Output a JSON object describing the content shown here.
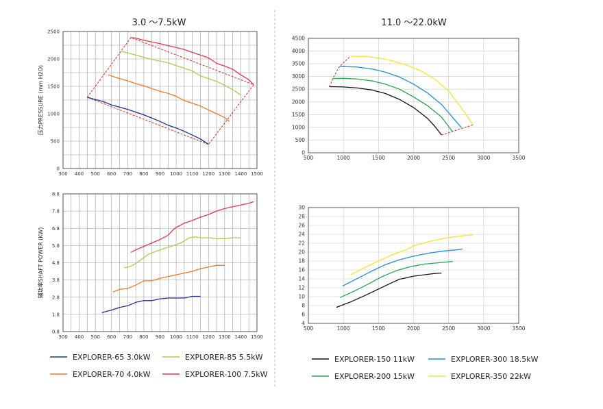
{
  "titles": {
    "left": "3.0 ～7.5kW",
    "right": "11.0 ～22.0kW"
  },
  "colors": {
    "explorer65": "#1f2e8c",
    "explorer70": "#f07a1e",
    "explorer85": "#a6d048",
    "explorer100": "#e8334f",
    "explorer150": "#111111",
    "explorer200": "#22a54d",
    "explorer300": "#1c8fd6",
    "explorer350": "#f4e62a",
    "envelope": "#e0261c",
    "grid": "#9a9a9a",
    "rightGrid": "#c8c8c8"
  },
  "legend_left": [
    {
      "label": "EXPLORER-65  3.0kW",
      "color": "#1f2e8c"
    },
    {
      "label": "EXPLORER-85  5.5kW",
      "color": "#a6d048"
    },
    {
      "label": "EXPLORER-70  4.0kW",
      "color": "#f07a1e"
    },
    {
      "label": "EXPLORER-100  7.5kW",
      "color": "#e8334f"
    }
  ],
  "legend_right": [
    {
      "label": "EXPLORER-150  11kW",
      "color": "#111111"
    },
    {
      "label": "EXPLORER-300  18.5kW",
      "color": "#1c8fd6"
    },
    {
      "label": "EXPLORER-200  15kW",
      "color": "#22a54d"
    },
    {
      "label": "EXPLORER-350  22kW",
      "color": "#f4e62a"
    }
  ],
  "chart_data": [
    {
      "type": "line",
      "title": "3.0 ～7.5kW",
      "ylabel": "压力PRESSURE (mm H2O)",
      "xlim": [
        300,
        1500
      ],
      "ylim": [
        0,
        2500
      ],
      "xticks": [
        300,
        400,
        500,
        600,
        700,
        800,
        900,
        1000,
        1100,
        1200,
        1300,
        1400,
        1500
      ],
      "yticks": [
        0,
        500,
        1000,
        1500,
        2000,
        2500
      ],
      "grid": true,
      "series": [
        {
          "name": "EXPLORER-65  3.0kW",
          "color": "#1f2e8c",
          "points": [
            [
              450,
              1300
            ],
            [
              500,
              1260
            ],
            [
              550,
              1220
            ],
            [
              600,
              1160
            ],
            [
              650,
              1120
            ],
            [
              700,
              1080
            ],
            [
              750,
              1030
            ],
            [
              800,
              980
            ],
            [
              850,
              920
            ],
            [
              900,
              860
            ],
            [
              950,
              790
            ],
            [
              1000,
              740
            ],
            [
              1050,
              680
            ],
            [
              1100,
              610
            ],
            [
              1150,
              540
            ],
            [
              1200,
              440
            ]
          ]
        },
        {
          "name": "EXPLORER-70  4.0kW",
          "color": "#f07a1e",
          "points": [
            [
              580,
              1710
            ],
            [
              650,
              1640
            ],
            [
              700,
              1600
            ],
            [
              750,
              1550
            ],
            [
              800,
              1510
            ],
            [
              850,
              1460
            ],
            [
              900,
              1410
            ],
            [
              950,
              1370
            ],
            [
              1000,
              1320
            ],
            [
              1050,
              1240
            ],
            [
              1100,
              1190
            ],
            [
              1150,
              1140
            ],
            [
              1200,
              1070
            ],
            [
              1250,
              1000
            ],
            [
              1300,
              930
            ],
            [
              1330,
              860
            ]
          ]
        },
        {
          "name": "EXPLORER-85  5.5kW",
          "color": "#a6d048",
          "points": [
            [
              660,
              2140
            ],
            [
              700,
              2110
            ],
            [
              750,
              2070
            ],
            [
              800,
              2030
            ],
            [
              850,
              1990
            ],
            [
              900,
              1960
            ],
            [
              950,
              1930
            ],
            [
              1000,
              1880
            ],
            [
              1050,
              1830
            ],
            [
              1100,
              1780
            ],
            [
              1150,
              1690
            ],
            [
              1200,
              1640
            ],
            [
              1250,
              1590
            ],
            [
              1300,
              1520
            ],
            [
              1350,
              1440
            ],
            [
              1400,
              1340
            ]
          ]
        },
        {
          "name": "EXPLORER-100  7.5kW",
          "color": "#e8334f",
          "points": [
            [
              720,
              2390
            ],
            [
              750,
              2380
            ],
            [
              800,
              2340
            ],
            [
              850,
              2310
            ],
            [
              900,
              2280
            ],
            [
              950,
              2240
            ],
            [
              1000,
              2210
            ],
            [
              1050,
              2170
            ],
            [
              1100,
              2120
            ],
            [
              1150,
              2070
            ],
            [
              1200,
              2020
            ],
            [
              1250,
              1920
            ],
            [
              1300,
              1870
            ],
            [
              1350,
              1810
            ],
            [
              1400,
              1710
            ],
            [
              1450,
              1620
            ],
            [
              1480,
              1530
            ]
          ]
        }
      ],
      "envelope": [
        [
          450,
          1300
        ],
        [
          720,
          2390
        ],
        [
          1480,
          1530
        ],
        [
          1200,
          440
        ],
        [
          450,
          1300
        ]
      ]
    },
    {
      "type": "line",
      "ylabel": "辅功率SHAFT POWER (KW)",
      "xlim": [
        300,
        1500
      ],
      "ylim": [
        0.8,
        8.8
      ],
      "xticks": [
        300,
        400,
        500,
        600,
        700,
        800,
        900,
        1000,
        1100,
        1200,
        1300,
        1400,
        1500
      ],
      "yticks": [
        0.8,
        1.8,
        2.8,
        3.8,
        4.8,
        5.8,
        6.8,
        7.8,
        8.8
      ],
      "grid": true,
      "series": [
        {
          "name": "EXPLORER-65  3.0kW",
          "color": "#1f2e8c",
          "points": [
            [
              540,
              1.9
            ],
            [
              600,
              2.05
            ],
            [
              650,
              2.2
            ],
            [
              700,
              2.3
            ],
            [
              750,
              2.5
            ],
            [
              800,
              2.6
            ],
            [
              850,
              2.6
            ],
            [
              900,
              2.7
            ],
            [
              950,
              2.75
            ],
            [
              1000,
              2.75
            ],
            [
              1050,
              2.75
            ],
            [
              1100,
              2.85
            ],
            [
              1150,
              2.85
            ]
          ]
        },
        {
          "name": "EXPLORER-70  4.0kW",
          "color": "#f07a1e",
          "points": [
            [
              610,
              3.1
            ],
            [
              650,
              3.25
            ],
            [
              700,
              3.3
            ],
            [
              750,
              3.5
            ],
            [
              800,
              3.75
            ],
            [
              850,
              3.75
            ],
            [
              900,
              3.9
            ],
            [
              950,
              4.0
            ],
            [
              1000,
              4.1
            ],
            [
              1050,
              4.2
            ],
            [
              1100,
              4.3
            ],
            [
              1150,
              4.45
            ],
            [
              1200,
              4.55
            ],
            [
              1250,
              4.65
            ],
            [
              1300,
              4.65
            ]
          ]
        },
        {
          "name": "EXPLORER-85  5.5kW",
          "color": "#a6d048",
          "points": [
            [
              680,
              4.5
            ],
            [
              720,
              4.6
            ],
            [
              750,
              4.75
            ],
            [
              800,
              5.1
            ],
            [
              830,
              5.3
            ],
            [
              900,
              5.55
            ],
            [
              950,
              5.7
            ],
            [
              1000,
              5.85
            ],
            [
              1040,
              6.0
            ],
            [
              1080,
              6.25
            ],
            [
              1120,
              6.3
            ],
            [
              1150,
              6.25
            ],
            [
              1200,
              6.25
            ],
            [
              1250,
              6.2
            ],
            [
              1300,
              6.2
            ],
            [
              1350,
              6.25
            ],
            [
              1400,
              6.25
            ]
          ]
        },
        {
          "name": "EXPLORER-100  7.5kW",
          "color": "#e8334f",
          "points": [
            [
              720,
              5.4
            ],
            [
              750,
              5.55
            ],
            [
              800,
              5.75
            ],
            [
              850,
              5.95
            ],
            [
              900,
              6.15
            ],
            [
              950,
              6.4
            ],
            [
              980,
              6.7
            ],
            [
              1000,
              6.85
            ],
            [
              1050,
              7.1
            ],
            [
              1100,
              7.25
            ],
            [
              1150,
              7.45
            ],
            [
              1200,
              7.6
            ],
            [
              1250,
              7.8
            ],
            [
              1300,
              7.95
            ],
            [
              1350,
              8.05
            ],
            [
              1400,
              8.15
            ],
            [
              1450,
              8.25
            ],
            [
              1480,
              8.35
            ]
          ]
        }
      ]
    },
    {
      "type": "line",
      "title": "11.0 ～22.0kW",
      "xlim": [
        500,
        3500
      ],
      "ylim": [
        0,
        4500
      ],
      "xticks": [
        500,
        1000,
        1500,
        2000,
        2500,
        3000,
        3500
      ],
      "yticks": [
        0,
        500,
        1000,
        1500,
        2000,
        2500,
        3000,
        3500,
        4000,
        4500
      ],
      "grid": true,
      "series": [
        {
          "name": "EXPLORER-150  11kW",
          "color": "#111111",
          "points": [
            [
              800,
              2600
            ],
            [
              1000,
              2590
            ],
            [
              1200,
              2550
            ],
            [
              1400,
              2470
            ],
            [
              1600,
              2330
            ],
            [
              1800,
              2100
            ],
            [
              2000,
              1780
            ],
            [
              2200,
              1350
            ],
            [
              2300,
              1050
            ],
            [
              2400,
              700
            ]
          ]
        },
        {
          "name": "EXPLORER-200  15kW",
          "color": "#22a54d",
          "points": [
            [
              850,
              2920
            ],
            [
              1000,
              2930
            ],
            [
              1200,
              2900
            ],
            [
              1400,
              2830
            ],
            [
              1600,
              2700
            ],
            [
              1800,
              2500
            ],
            [
              2000,
              2200
            ],
            [
              2200,
              1850
            ],
            [
              2400,
              1400
            ],
            [
              2560,
              820
            ]
          ]
        },
        {
          "name": "EXPLORER-300  18.5kW",
          "color": "#1c8fd6",
          "points": [
            [
              940,
              3380
            ],
            [
              1000,
              3390
            ],
            [
              1200,
              3370
            ],
            [
              1400,
              3300
            ],
            [
              1600,
              3170
            ],
            [
              1800,
              2980
            ],
            [
              2000,
              2700
            ],
            [
              2200,
              2350
            ],
            [
              2400,
              1900
            ],
            [
              2600,
              1250
            ],
            [
              2680,
              1000
            ]
          ]
        },
        {
          "name": "EXPLORER-350  22kW",
          "color": "#f4e62a",
          "points": [
            [
              1100,
              3800
            ],
            [
              1300,
              3790
            ],
            [
              1500,
              3730
            ],
            [
              1700,
              3620
            ],
            [
              1900,
              3450
            ],
            [
              2100,
              3230
            ],
            [
              2300,
              2900
            ],
            [
              2500,
              2430
            ],
            [
              2700,
              1700
            ],
            [
              2850,
              1100
            ]
          ]
        }
      ],
      "envelope": [
        [
          800,
          2600
        ],
        [
          850,
          2920
        ],
        [
          940,
          3380
        ],
        [
          1100,
          3800
        ]
      ],
      "envelope_bottom": [
        [
          2400,
          700
        ],
        [
          2850,
          1100
        ]
      ]
    },
    {
      "type": "line",
      "xlim": [
        500,
        3500
      ],
      "ylim": [
        4,
        30
      ],
      "xticks": [
        500,
        1000,
        1500,
        2000,
        2500,
        3000,
        3500
      ],
      "yticks": [
        4,
        6,
        8,
        10,
        12,
        14,
        16,
        18,
        20,
        22,
        24,
        26,
        28,
        30
      ],
      "grid": true,
      "series": [
        {
          "name": "EXPLORER-150  11kW",
          "color": "#111111",
          "points": [
            [
              900,
              7.6
            ],
            [
              1100,
              8.8
            ],
            [
              1300,
              10.2
            ],
            [
              1500,
              11.7
            ],
            [
              1700,
              13.2
            ],
            [
              1800,
              13.9
            ],
            [
              2000,
              14.6
            ],
            [
              2200,
              15.0
            ],
            [
              2300,
              15.2
            ],
            [
              2400,
              15.3
            ]
          ]
        },
        {
          "name": "EXPLORER-200  15kW",
          "color": "#22a54d",
          "points": [
            [
              950,
              9.8
            ],
            [
              1150,
              11.2
            ],
            [
              1350,
              12.8
            ],
            [
              1550,
              14.5
            ],
            [
              1750,
              15.8
            ],
            [
              1950,
              16.7
            ],
            [
              2150,
              17.3
            ],
            [
              2350,
              17.6
            ],
            [
              2560,
              17.9
            ]
          ]
        },
        {
          "name": "EXPLORER-300  18.5kW",
          "color": "#1c8fd6",
          "points": [
            [
              990,
              12.4
            ],
            [
              1200,
              14.1
            ],
            [
              1400,
              15.7
            ],
            [
              1600,
              17.2
            ],
            [
              1800,
              18.3
            ],
            [
              2000,
              19.1
            ],
            [
              2200,
              19.7
            ],
            [
              2400,
              20.2
            ],
            [
              2600,
              20.5
            ],
            [
              2700,
              20.7
            ]
          ]
        },
        {
          "name": "EXPLORER-350  22kW",
          "color": "#f4e62a",
          "points": [
            [
              1100,
              14.9
            ],
            [
              1300,
              16.5
            ],
            [
              1500,
              18.0
            ],
            [
              1700,
              19.4
            ],
            [
              1900,
              20.6
            ],
            [
              2000,
              21.4
            ],
            [
              2200,
              22.3
            ],
            [
              2400,
              23.0
            ],
            [
              2600,
              23.5
            ],
            [
              2850,
              23.9
            ]
          ]
        }
      ]
    }
  ]
}
